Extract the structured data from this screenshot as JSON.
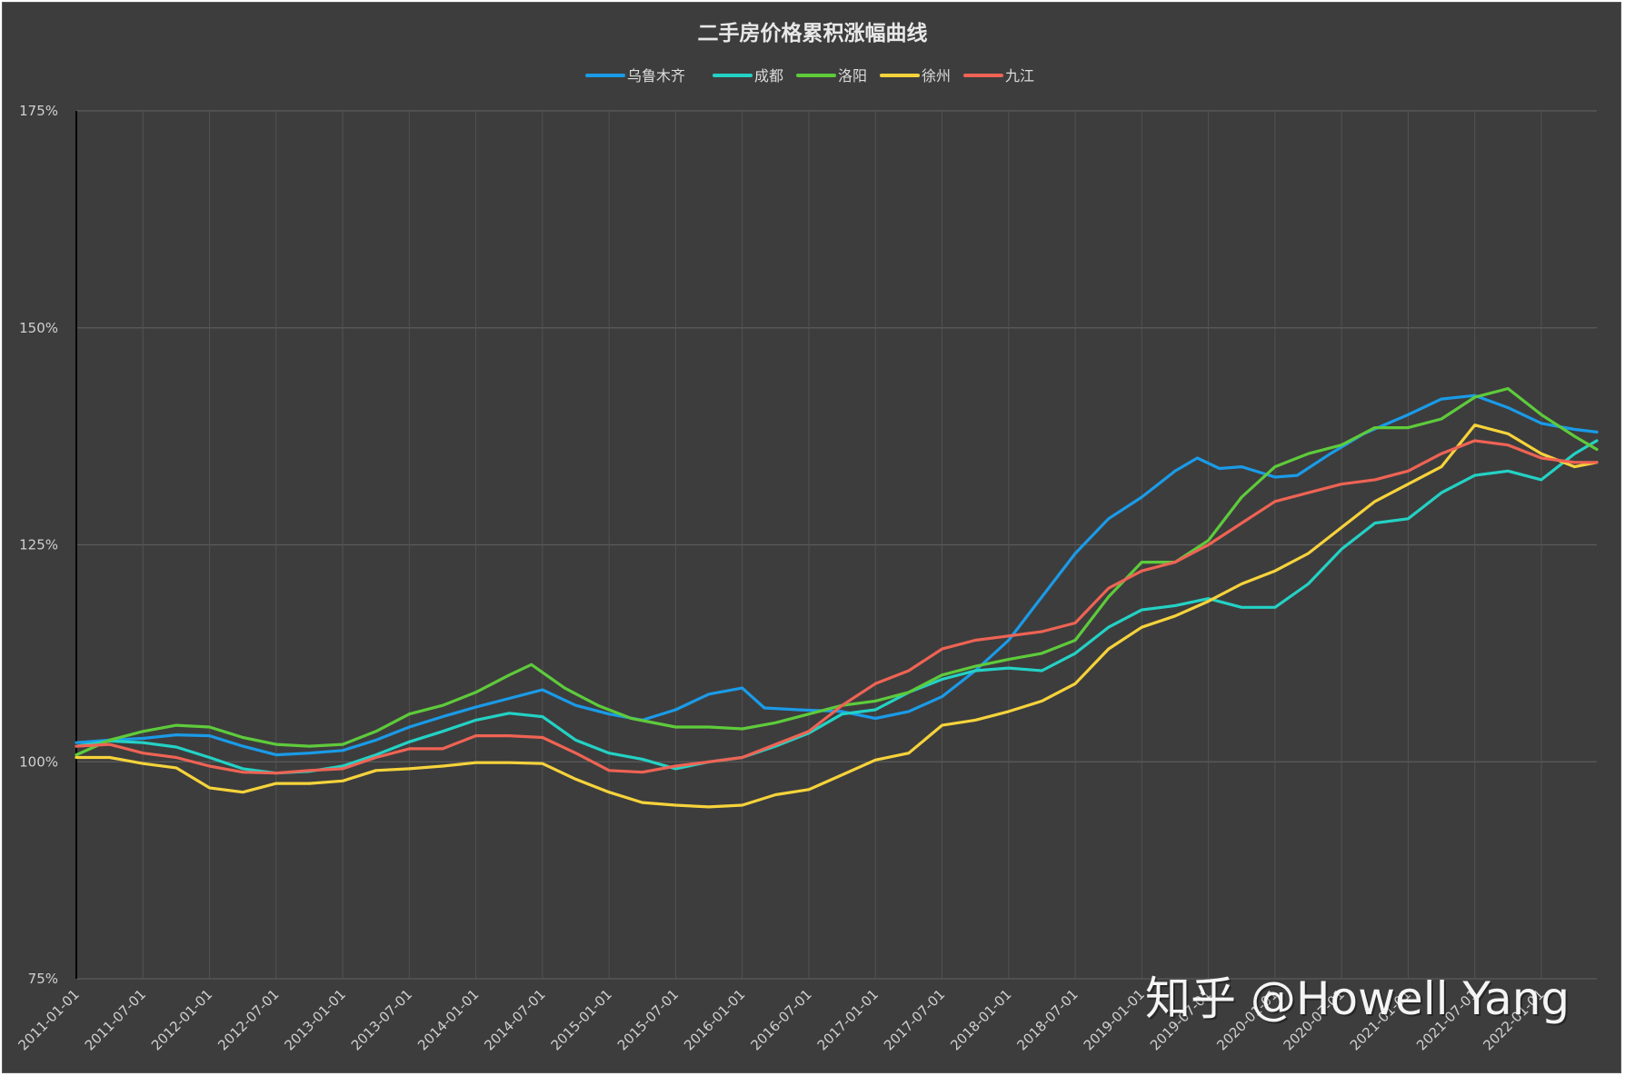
{
  "watermark": "知乎 @Howell Yang",
  "chart_data": {
    "type": "line",
    "title": "二手房价格累积涨幅曲线",
    "legend_position": "top-center",
    "grid": true,
    "ylim": [
      75,
      175
    ],
    "yticks": [
      75,
      100,
      125,
      150,
      175
    ],
    "ytick_labels": [
      "75%",
      "100%",
      "125%",
      "150%",
      "175%"
    ],
    "xlim": [
      "2011-01-01",
      "2022-06-01"
    ],
    "xtick_labels": [
      "2011-01-01",
      "2011-07-01",
      "2012-01-01",
      "2012-07-01",
      "2013-01-01",
      "2013-07-01",
      "2014-01-01",
      "2014-07-01",
      "2015-01-01",
      "2015-07-01",
      "2016-01-01",
      "2016-07-01",
      "2017-01-01",
      "2017-07-01",
      "2018-01-01",
      "2018-07-01",
      "2019-01-01",
      "2019-07-01",
      "2020-01-01",
      "2020-07-01",
      "2021-01-01",
      "2021-07-01",
      "2022-01-01"
    ],
    "series": [
      {
        "name": "乌鲁木齐",
        "color": "#1a9be8",
        "points": [
          [
            "2011-01-01",
            102.2
          ],
          [
            "2011-04-01",
            102.5
          ],
          [
            "2011-07-01",
            102.7
          ],
          [
            "2011-10-01",
            103.1
          ],
          [
            "2012-01-01",
            103.0
          ],
          [
            "2012-04-01",
            101.8
          ],
          [
            "2012-07-01",
            100.8
          ],
          [
            "2012-10-01",
            101.0
          ],
          [
            "2013-01-01",
            101.3
          ],
          [
            "2013-04-01",
            102.5
          ],
          [
            "2013-07-01",
            104.0
          ],
          [
            "2013-10-01",
            105.2
          ],
          [
            "2014-01-01",
            106.3
          ],
          [
            "2014-04-01",
            107.3
          ],
          [
            "2014-07-01",
            108.3
          ],
          [
            "2014-10-01",
            106.5
          ],
          [
            "2015-01-01",
            105.5
          ],
          [
            "2015-04-01",
            104.8
          ],
          [
            "2015-07-01",
            106.0
          ],
          [
            "2015-10-01",
            107.8
          ],
          [
            "2016-01-01",
            108.5
          ],
          [
            "2016-03-01",
            106.2
          ],
          [
            "2016-06-01",
            106.0
          ],
          [
            "2016-10-01",
            105.8
          ],
          [
            "2017-01-01",
            105.0
          ],
          [
            "2017-04-01",
            105.8
          ],
          [
            "2017-07-01",
            107.5
          ],
          [
            "2017-10-01",
            110.5
          ],
          [
            "2018-01-01",
            114.0
          ],
          [
            "2018-04-01",
            119.0
          ],
          [
            "2018-07-01",
            124.0
          ],
          [
            "2018-10-01",
            128.0
          ],
          [
            "2019-01-01",
            130.5
          ],
          [
            "2019-04-01",
            133.5
          ],
          [
            "2019-06-01",
            135.0
          ],
          [
            "2019-08-01",
            133.8
          ],
          [
            "2019-10-01",
            134.0
          ],
          [
            "2020-01-01",
            132.8
          ],
          [
            "2020-03-01",
            133.0
          ],
          [
            "2020-06-01",
            135.5
          ],
          [
            "2020-09-01",
            137.8
          ],
          [
            "2021-01-01",
            140.0
          ],
          [
            "2021-04-01",
            141.8
          ],
          [
            "2021-07-01",
            142.2
          ],
          [
            "2021-10-01",
            140.8
          ],
          [
            "2022-01-01",
            139.0
          ],
          [
            "2022-04-01",
            138.3
          ],
          [
            "2022-06-01",
            138.0
          ]
        ]
      },
      {
        "name": "成都",
        "color": "#23d2c5",
        "points": [
          [
            "2011-01-01",
            101.8
          ],
          [
            "2011-04-01",
            102.4
          ],
          [
            "2011-07-01",
            102.2
          ],
          [
            "2011-10-01",
            101.7
          ],
          [
            "2012-01-01",
            100.5
          ],
          [
            "2012-04-01",
            99.2
          ],
          [
            "2012-07-01",
            98.7
          ],
          [
            "2012-10-01",
            98.9
          ],
          [
            "2013-01-01",
            99.5
          ],
          [
            "2013-04-01",
            100.8
          ],
          [
            "2013-07-01",
            102.3
          ],
          [
            "2013-10-01",
            103.5
          ],
          [
            "2014-01-01",
            104.8
          ],
          [
            "2014-04-01",
            105.6
          ],
          [
            "2014-07-01",
            105.2
          ],
          [
            "2014-10-01",
            102.5
          ],
          [
            "2015-01-01",
            101.0
          ],
          [
            "2015-04-01",
            100.3
          ],
          [
            "2015-07-01",
            99.2
          ],
          [
            "2015-10-01",
            100.0
          ],
          [
            "2016-01-01",
            100.5
          ],
          [
            "2016-04-01",
            101.8
          ],
          [
            "2016-07-01",
            103.3
          ],
          [
            "2016-10-01",
            105.5
          ],
          [
            "2017-01-01",
            106.0
          ],
          [
            "2017-04-01",
            108.0
          ],
          [
            "2017-07-01",
            109.5
          ],
          [
            "2017-10-01",
            110.5
          ],
          [
            "2018-01-01",
            110.8
          ],
          [
            "2018-04-01",
            110.5
          ],
          [
            "2018-07-01",
            112.5
          ],
          [
            "2018-10-01",
            115.5
          ],
          [
            "2019-01-01",
            117.5
          ],
          [
            "2019-04-01",
            118.0
          ],
          [
            "2019-07-01",
            118.8
          ],
          [
            "2019-10-01",
            117.8
          ],
          [
            "2020-01-01",
            117.8
          ],
          [
            "2020-04-01",
            120.5
          ],
          [
            "2020-07-01",
            124.5
          ],
          [
            "2020-10-01",
            127.5
          ],
          [
            "2021-01-01",
            128.0
          ],
          [
            "2021-04-01",
            131.0
          ],
          [
            "2021-07-01",
            133.0
          ],
          [
            "2021-10-01",
            133.5
          ],
          [
            "2022-01-01",
            132.5
          ],
          [
            "2022-04-01",
            135.5
          ],
          [
            "2022-06-01",
            137.0
          ]
        ]
      },
      {
        "name": "洛阳",
        "color": "#5ecb3b",
        "points": [
          [
            "2011-01-01",
            100.8
          ],
          [
            "2011-04-01",
            102.5
          ],
          [
            "2011-07-01",
            103.5
          ],
          [
            "2011-10-01",
            104.2
          ],
          [
            "2012-01-01",
            104.0
          ],
          [
            "2012-04-01",
            102.8
          ],
          [
            "2012-07-01",
            102.0
          ],
          [
            "2012-10-01",
            101.8
          ],
          [
            "2013-01-01",
            102.0
          ],
          [
            "2013-04-01",
            103.5
          ],
          [
            "2013-07-01",
            105.5
          ],
          [
            "2013-10-01",
            106.5
          ],
          [
            "2014-01-01",
            108.0
          ],
          [
            "2014-04-01",
            110.0
          ],
          [
            "2014-06-01",
            111.2
          ],
          [
            "2014-09-01",
            108.5
          ],
          [
            "2014-12-01",
            106.5
          ],
          [
            "2015-03-01",
            105.0
          ],
          [
            "2015-07-01",
            104.0
          ],
          [
            "2015-10-01",
            104.0
          ],
          [
            "2016-01-01",
            103.8
          ],
          [
            "2016-04-01",
            104.5
          ],
          [
            "2016-07-01",
            105.5
          ],
          [
            "2016-10-01",
            106.5
          ],
          [
            "2017-01-01",
            107.0
          ],
          [
            "2017-04-01",
            108.0
          ],
          [
            "2017-07-01",
            110.0
          ],
          [
            "2017-10-01",
            111.0
          ],
          [
            "2018-01-01",
            111.8
          ],
          [
            "2018-04-01",
            112.5
          ],
          [
            "2018-07-01",
            114.0
          ],
          [
            "2018-10-01",
            119.0
          ],
          [
            "2019-01-01",
            123.0
          ],
          [
            "2019-04-01",
            123.0
          ],
          [
            "2019-07-01",
            125.5
          ],
          [
            "2019-10-01",
            130.5
          ],
          [
            "2020-01-01",
            134.0
          ],
          [
            "2020-04-01",
            135.5
          ],
          [
            "2020-07-01",
            136.5
          ],
          [
            "2020-10-01",
            138.5
          ],
          [
            "2021-01-01",
            138.5
          ],
          [
            "2021-04-01",
            139.5
          ],
          [
            "2021-07-01",
            142.0
          ],
          [
            "2021-10-01",
            143.0
          ],
          [
            "2022-01-01",
            140.0
          ],
          [
            "2022-04-01",
            137.5
          ],
          [
            "2022-06-01",
            136.0
          ]
        ]
      },
      {
        "name": "徐州",
        "color": "#f6d33b",
        "points": [
          [
            "2011-01-01",
            100.5
          ],
          [
            "2011-04-01",
            100.5
          ],
          [
            "2011-07-01",
            99.8
          ],
          [
            "2011-10-01",
            99.3
          ],
          [
            "2012-01-01",
            97.0
          ],
          [
            "2012-04-01",
            96.5
          ],
          [
            "2012-07-01",
            97.5
          ],
          [
            "2012-10-01",
            97.5
          ],
          [
            "2013-01-01",
            97.8
          ],
          [
            "2013-04-01",
            99.0
          ],
          [
            "2013-07-01",
            99.2
          ],
          [
            "2013-10-01",
            99.5
          ],
          [
            "2014-01-01",
            99.9
          ],
          [
            "2014-04-01",
            99.9
          ],
          [
            "2014-07-01",
            99.8
          ],
          [
            "2014-10-01",
            98.0
          ],
          [
            "2015-01-01",
            96.5
          ],
          [
            "2015-04-01",
            95.3
          ],
          [
            "2015-07-01",
            95.0
          ],
          [
            "2015-10-01",
            94.8
          ],
          [
            "2016-01-01",
            95.0
          ],
          [
            "2016-04-01",
            96.2
          ],
          [
            "2016-07-01",
            96.8
          ],
          [
            "2016-10-01",
            98.5
          ],
          [
            "2017-01-01",
            100.2
          ],
          [
            "2017-04-01",
            101.0
          ],
          [
            "2017-07-01",
            104.2
          ],
          [
            "2017-10-01",
            104.8
          ],
          [
            "2018-01-01",
            105.8
          ],
          [
            "2018-04-01",
            107.0
          ],
          [
            "2018-07-01",
            109.0
          ],
          [
            "2018-10-01",
            113.0
          ],
          [
            "2019-01-01",
            115.5
          ],
          [
            "2019-04-01",
            116.8
          ],
          [
            "2019-07-01",
            118.5
          ],
          [
            "2019-10-01",
            120.5
          ],
          [
            "2020-01-01",
            122.0
          ],
          [
            "2020-04-01",
            124.0
          ],
          [
            "2020-07-01",
            127.0
          ],
          [
            "2020-10-01",
            130.0
          ],
          [
            "2021-01-01",
            132.0
          ],
          [
            "2021-04-01",
            134.0
          ],
          [
            "2021-07-01",
            138.8
          ],
          [
            "2021-10-01",
            137.8
          ],
          [
            "2022-01-01",
            135.5
          ],
          [
            "2022-04-01",
            134.0
          ],
          [
            "2022-06-01",
            134.5
          ]
        ]
      },
      {
        "name": "九江",
        "color": "#ef6354",
        "points": [
          [
            "2011-01-01",
            101.8
          ],
          [
            "2011-04-01",
            102.0
          ],
          [
            "2011-07-01",
            101.0
          ],
          [
            "2011-10-01",
            100.5
          ],
          [
            "2012-01-01",
            99.5
          ],
          [
            "2012-04-01",
            98.8
          ],
          [
            "2012-07-01",
            98.7
          ],
          [
            "2012-10-01",
            99.0
          ],
          [
            "2013-01-01",
            99.2
          ],
          [
            "2013-04-01",
            100.5
          ],
          [
            "2013-07-01",
            101.5
          ],
          [
            "2013-10-01",
            101.5
          ],
          [
            "2014-01-01",
            103.0
          ],
          [
            "2014-04-01",
            103.0
          ],
          [
            "2014-07-01",
            102.8
          ],
          [
            "2014-10-01",
            101.0
          ],
          [
            "2015-01-01",
            99.0
          ],
          [
            "2015-04-01",
            98.8
          ],
          [
            "2015-07-01",
            99.5
          ],
          [
            "2015-10-01",
            100.0
          ],
          [
            "2016-01-01",
            100.5
          ],
          [
            "2016-04-01",
            102.0
          ],
          [
            "2016-07-01",
            103.5
          ],
          [
            "2016-10-01",
            106.5
          ],
          [
            "2017-01-01",
            109.0
          ],
          [
            "2017-04-01",
            110.5
          ],
          [
            "2017-07-01",
            113.0
          ],
          [
            "2017-10-01",
            114.0
          ],
          [
            "2018-01-01",
            114.5
          ],
          [
            "2018-04-01",
            115.0
          ],
          [
            "2018-07-01",
            116.0
          ],
          [
            "2018-10-01",
            120.0
          ],
          [
            "2019-01-01",
            122.0
          ],
          [
            "2019-04-01",
            123.0
          ],
          [
            "2019-07-01",
            125.0
          ],
          [
            "2019-10-01",
            127.5
          ],
          [
            "2020-01-01",
            130.0
          ],
          [
            "2020-04-01",
            131.0
          ],
          [
            "2020-07-01",
            132.0
          ],
          [
            "2020-10-01",
            132.5
          ],
          [
            "2021-01-01",
            133.5
          ],
          [
            "2021-04-01",
            135.5
          ],
          [
            "2021-07-01",
            137.0
          ],
          [
            "2021-10-01",
            136.5
          ],
          [
            "2022-01-01",
            135.0
          ],
          [
            "2022-04-01",
            134.5
          ],
          [
            "2022-06-01",
            134.5
          ]
        ]
      }
    ]
  }
}
